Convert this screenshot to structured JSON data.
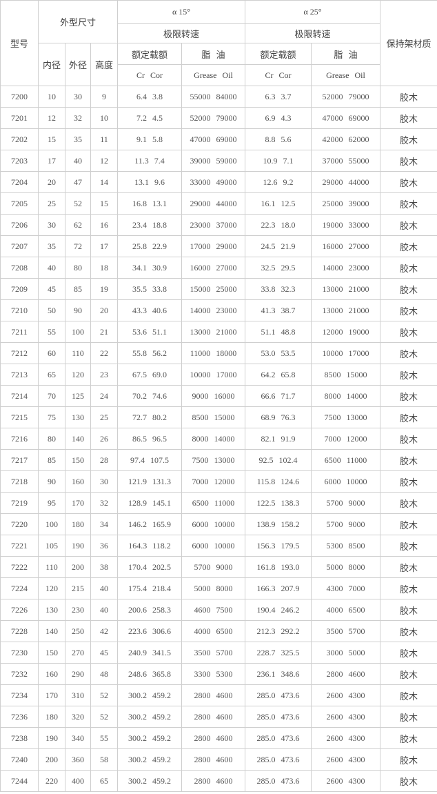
{
  "header": {
    "model": "型号",
    "dimensions": "外型尺寸",
    "inner": "内径",
    "outer": "外径",
    "height": "高度",
    "angle15": "α 15°",
    "angle25": "α 25°",
    "limit_speed": "极限转速",
    "rated_load": "额定载额",
    "grease_oil_cn": "脂  油",
    "cr": "Cr",
    "cor": "Cor",
    "grease": "Grease",
    "oil": "Oil",
    "cage_material": "保持架材质"
  },
  "rows": [
    [
      "7200",
      "10",
      "30",
      "9",
      "6.4",
      "3.8",
      "55000",
      "84000",
      "6.3",
      "3.7",
      "52000",
      "79000",
      "胶木"
    ],
    [
      "7201",
      "12",
      "32",
      "10",
      "7.2",
      "4.5",
      "52000",
      "79000",
      "6.9",
      "4.3",
      "47000",
      "69000",
      "胶木"
    ],
    [
      "7202",
      "15",
      "35",
      "11",
      "9.1",
      "5.8",
      "47000",
      "69000",
      "8.8",
      "5.6",
      "42000",
      "62000",
      "胶木"
    ],
    [
      "7203",
      "17",
      "40",
      "12",
      "11.3",
      "7.4",
      "39000",
      "59000",
      "10.9",
      "7.1",
      "37000",
      "55000",
      "胶木"
    ],
    [
      "7204",
      "20",
      "47",
      "14",
      "13.1",
      "9.6",
      "33000",
      "49000",
      "12.6",
      "9.2",
      "29000",
      "44000",
      "胶木"
    ],
    [
      "7205",
      "25",
      "52",
      "15",
      "16.8",
      "13.1",
      "29000",
      "44000",
      "16.1",
      "12.5",
      "25000",
      "39000",
      "胶木"
    ],
    [
      "7206",
      "30",
      "62",
      "16",
      "23.4",
      "18.8",
      "23000",
      "37000",
      "22.3",
      "18.0",
      "19000",
      "33000",
      "胶木"
    ],
    [
      "7207",
      "35",
      "72",
      "17",
      "25.8",
      "22.9",
      "17000",
      "29000",
      "24.5",
      "21.9",
      "16000",
      "27000",
      "胶木"
    ],
    [
      "7208",
      "40",
      "80",
      "18",
      "34.1",
      "30.9",
      "16000",
      "27000",
      "32.5",
      "29.5",
      "14000",
      "23000",
      "胶木"
    ],
    [
      "7209",
      "45",
      "85",
      "19",
      "35.5",
      "33.8",
      "15000",
      "25000",
      "33.8",
      "32.3",
      "13000",
      "21000",
      "胶木"
    ],
    [
      "7210",
      "50",
      "90",
      "20",
      "43.3",
      "40.6",
      "14000",
      "23000",
      "41.3",
      "38.7",
      "13000",
      "21000",
      "胶木"
    ],
    [
      "7211",
      "55",
      "100",
      "21",
      "53.6",
      "51.1",
      "13000",
      "21000",
      "51.1",
      "48.8",
      "12000",
      "19000",
      "胶木"
    ],
    [
      "7212",
      "60",
      "110",
      "22",
      "55.8",
      "56.2",
      "11000",
      "18000",
      "53.0",
      "53.5",
      "10000",
      "17000",
      "胶木"
    ],
    [
      "7213",
      "65",
      "120",
      "23",
      "67.5",
      "69.0",
      "10000",
      "17000",
      "64.2",
      "65.8",
      "8500",
      "15000",
      "胶木"
    ],
    [
      "7214",
      "70",
      "125",
      "24",
      "70.2",
      "74.6",
      "9000",
      "16000",
      "66.6",
      "71.7",
      "8000",
      "14000",
      "胶木"
    ],
    [
      "7215",
      "75",
      "130",
      "25",
      "72.7",
      "80.2",
      "8500",
      "15000",
      "68.9",
      "76.3",
      "7500",
      "13000",
      "胶木"
    ],
    [
      "7216",
      "80",
      "140",
      "26",
      "86.5",
      "96.5",
      "8000",
      "14000",
      "82.1",
      "91.9",
      "7000",
      "12000",
      "胶木"
    ],
    [
      "7217",
      "85",
      "150",
      "28",
      "97.4",
      "107.5",
      "7500",
      "13000",
      "92.5",
      "102.4",
      "6500",
      "11000",
      "胶木"
    ],
    [
      "7218",
      "90",
      "160",
      "30",
      "121.9",
      "131.3",
      "7000",
      "12000",
      "115.8",
      "124.6",
      "6000",
      "10000",
      "胶木"
    ],
    [
      "7219",
      "95",
      "170",
      "32",
      "128.9",
      "145.1",
      "6500",
      "11000",
      "122.5",
      "138.3",
      "5700",
      "9000",
      "胶木"
    ],
    [
      "7220",
      "100",
      "180",
      "34",
      "146.2",
      "165.9",
      "6000",
      "10000",
      "138.9",
      "158.2",
      "5700",
      "9000",
      "胶木"
    ],
    [
      "7221",
      "105",
      "190",
      "36",
      "164.3",
      "118.2",
      "6000",
      "10000",
      "156.3",
      "179.5",
      "5300",
      "8500",
      "胶木"
    ],
    [
      "7222",
      "110",
      "200",
      "38",
      "170.4",
      "202.5",
      "5700",
      "9000",
      "161.8",
      "193.0",
      "5000",
      "8000",
      "胶木"
    ],
    [
      "7224",
      "120",
      "215",
      "40",
      "175.4",
      "218.4",
      "5000",
      "8000",
      "166.3",
      "207.9",
      "4300",
      "7000",
      "胶木"
    ],
    [
      "7226",
      "130",
      "230",
      "40",
      "200.6",
      "258.3",
      "4600",
      "7500",
      "190.4",
      "246.2",
      "4000",
      "6500",
      "胶木"
    ],
    [
      "7228",
      "140",
      "250",
      "42",
      "223.6",
      "306.6",
      "4000",
      "6500",
      "212.3",
      "292.2",
      "3500",
      "5700",
      "胶木"
    ],
    [
      "7230",
      "150",
      "270",
      "45",
      "240.9",
      "341.5",
      "3500",
      "5700",
      "228.7",
      "325.5",
      "3000",
      "5000",
      "胶木"
    ],
    [
      "7232",
      "160",
      "290",
      "48",
      "248.6",
      "365.8",
      "3300",
      "5300",
      "236.1",
      "348.6",
      "2800",
      "4600",
      "胶木"
    ],
    [
      "7234",
      "170",
      "310",
      "52",
      "300.2",
      "459.2",
      "2800",
      "4600",
      "285.0",
      "473.6",
      "2600",
      "4300",
      "胶木"
    ],
    [
      "7236",
      "180",
      "320",
      "52",
      "300.2",
      "459.2",
      "2800",
      "4600",
      "285.0",
      "473.6",
      "2600",
      "4300",
      "胶木"
    ],
    [
      "7238",
      "190",
      "340",
      "55",
      "300.2",
      "459.2",
      "2800",
      "4600",
      "285.0",
      "473.6",
      "2600",
      "4300",
      "胶木"
    ],
    [
      "7240",
      "200",
      "360",
      "58",
      "300.2",
      "459.2",
      "2800",
      "4600",
      "285.0",
      "473.6",
      "2600",
      "4300",
      "胶木"
    ],
    [
      "7244",
      "220",
      "400",
      "65",
      "300.2",
      "459.2",
      "2800",
      "4600",
      "285.0",
      "473.6",
      "2600",
      "4300",
      "胶木"
    ]
  ]
}
